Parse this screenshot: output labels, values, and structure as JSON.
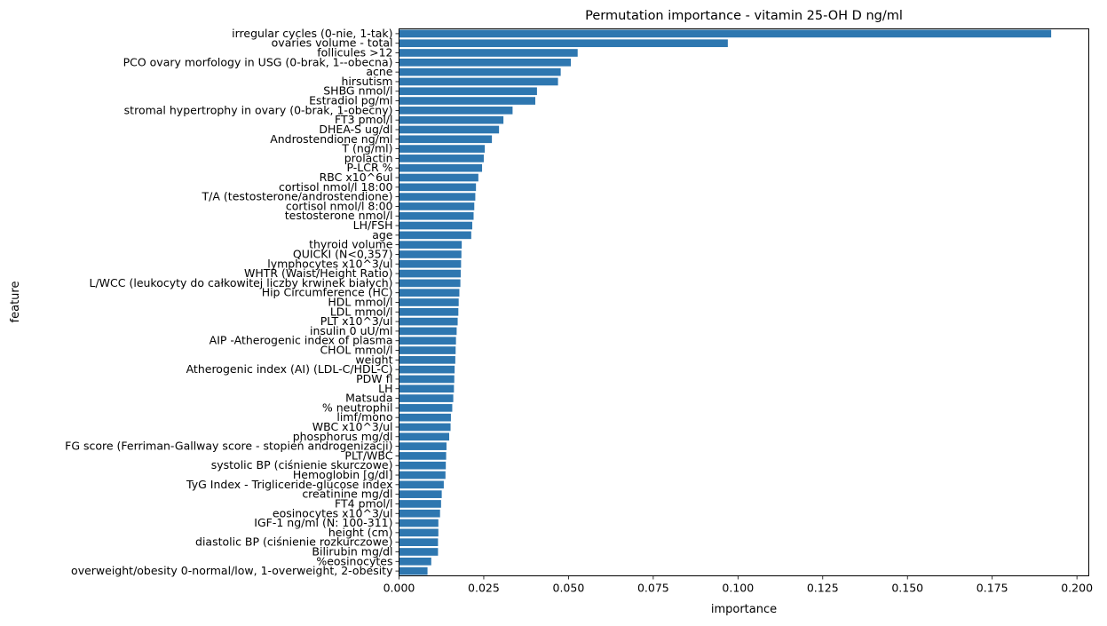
{
  "chart_data": {
    "type": "bar",
    "orientation": "horizontal",
    "title": "Permutation importance - vitamin 25-OH D ng/ml",
    "xlabel": "importance",
    "ylabel": "feature",
    "xlim": [
      0,
      0.2035
    ],
    "xticks": [
      "0.000",
      "0.025",
      "0.050",
      "0.075",
      "0.100",
      "0.125",
      "0.150",
      "0.175",
      "0.200"
    ],
    "grid": false,
    "bar_color": "#2e77b0",
    "categories": [
      "irregular cycles (0-nie, 1-tak)",
      "ovaries volume - total",
      "follicules >12",
      "PCO ovary morfology in USG (0-brak, 1--obecna)",
      "acne",
      "hirsutism",
      "SHBG nmol/l",
      "Estradiol pg/ml",
      "stromal hypertrophy in ovary (0-brak, 1-obecny)",
      "FT3 pmol/l",
      "DHEA-S ug/dl",
      "Androstendione ng/ml",
      "T (ng/ml)",
      "prolactin",
      "P-LCR %",
      "RBC x10^6ul",
      "cortisol nmol/l 18:00",
      "T/A (testosterone/androstendione)",
      "cortisol nmol/l  8:00",
      "testosterone nmol/l",
      "LH/FSH",
      "age",
      "thyroid volume",
      "QUICKI (N<0,357)",
      "lymphocytes x10^3/ul",
      "WHTR (Waist/Height Ratio)",
      "L/WCC (leukocyty do całkowitej liczby krwinek białych)",
      "Hip Circumference (HC)",
      "HDL mmol/l",
      "LDL mmol/l",
      "PLT x10^3/ul",
      "insulin 0 uU/ml",
      "AIP -Atherogenic index of plasma",
      "CHOL mmol/l",
      "weight",
      "Atherogenic index (AI) (LDL-C/HDL-C)",
      "PDW fl",
      "LH",
      "Matsuda",
      "% neutrophil ",
      "limf/mono",
      "WBC x10^3/ul",
      "phosphorus mg/dl",
      "FG score (Ferriman-Gallway score - stopień androgenizacji)",
      "PLT/WBC",
      "systolic BP (ciśnienie skurczowe)",
      "Hemoglobin [g/dl]",
      "TyG Index - Trigliceride-glucose index",
      "creatinine mg/dl",
      "FT4 pmol/l",
      "eosinocytes x10^3/ul",
      "IGF-1 ng/ml (N: 100-311)",
      "height (cm)",
      "diastolic BP (ciśnienie rozkurczowe)",
      "Bilirubin mg/dl",
      "%eosinocytes ",
      "overweight/obesity 0-normal/low, 1-overweight, 2-obesity"
    ],
    "values": [
      0.1924,
      0.097,
      0.0527,
      0.0507,
      0.0477,
      0.0469,
      0.0407,
      0.0402,
      0.0335,
      0.0308,
      0.0295,
      0.0274,
      0.0253,
      0.025,
      0.0245,
      0.0234,
      0.0227,
      0.0225,
      0.0222,
      0.022,
      0.0216,
      0.0213,
      0.0185,
      0.0184,
      0.0183,
      0.0182,
      0.0181,
      0.0178,
      0.0176,
      0.0175,
      0.0173,
      0.017,
      0.0168,
      0.0167,
      0.0166,
      0.0164,
      0.0163,
      0.0162,
      0.016,
      0.0157,
      0.0153,
      0.0152,
      0.0148,
      0.014,
      0.0139,
      0.0138,
      0.0137,
      0.0132,
      0.0126,
      0.0124,
      0.0121,
      0.0116,
      0.0116,
      0.0115,
      0.0115,
      0.0095,
      0.0084
    ]
  }
}
